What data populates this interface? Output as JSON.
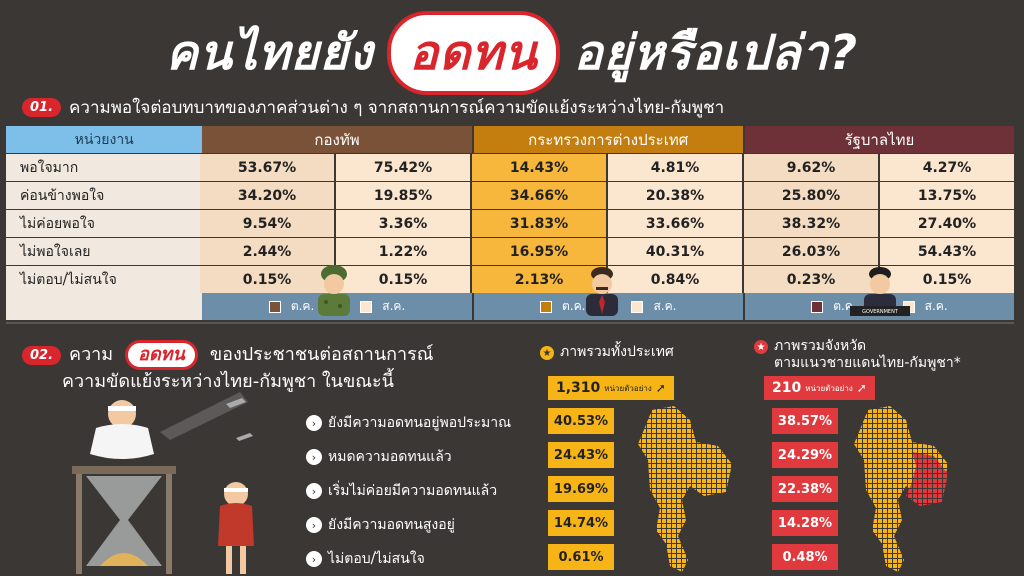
{
  "title": {
    "pre": "คนไทยยัง",
    "highlight": "อดทน",
    "post": "อยู่หรือเปล่า?"
  },
  "section1": {
    "num": "01.",
    "title": "ความพอใจต่อบทบาทของภาคส่วนต่าง ๆ จากสถานการณ์ความขัดแย้งระหว่างไทย-กัมพูชา",
    "header_label": "หน่วยงาน",
    "legend_a": "ต.ค.",
    "legend_b": "ส.ค.",
    "groups": [
      {
        "name": "กองทัพ",
        "head_color": "#7a5238",
        "col_a_color": "#f3dcc2",
        "col_b_color": "#fbe6d0",
        "legend_swatch": "#7a5238"
      },
      {
        "name": "กระทรวงการต่างประเทศ",
        "head_color": "#c47e10",
        "col_a_color": "#f6b73c",
        "col_b_color": "#fbe6d0",
        "legend_swatch": "#c47e10"
      },
      {
        "name": "รัฐบาลไทย",
        "head_color": "#6e3138",
        "col_a_color": "#f3dcc2",
        "col_b_color": "#fbe6d0",
        "legend_swatch": "#6e3138"
      }
    ],
    "figure_badge": "GOVERNMENT"
  },
  "chart_data": [
    {
      "type": "table",
      "title": "ความพอใจต่อบทบาทของภาคส่วนต่าง ๆ จากสถานการณ์ความขัดแย้งระหว่างไทย-กัมพูชา",
      "categories": [
        "พอใจมาก",
        "ค่อนข้างพอใจ",
        "ไม่ค่อยพอใจ",
        "ไม่พอใจเลย",
        "ไม่ตอบ/ไม่สนใจ"
      ],
      "series": [
        {
          "name": "กองทัพ ต.ค.",
          "values": [
            "53.67%",
            "34.20%",
            "9.54%",
            "2.44%",
            "0.15%"
          ]
        },
        {
          "name": "กองทัพ ส.ค.",
          "values": [
            "75.42%",
            "19.85%",
            "3.36%",
            "1.22%",
            "0.15%"
          ]
        },
        {
          "name": "กระทรวงการต่างประเทศ ต.ค.",
          "values": [
            "14.43%",
            "34.66%",
            "31.83%",
            "16.95%",
            "2.13%"
          ]
        },
        {
          "name": "กระทรวงการต่างประเทศ ส.ค.",
          "values": [
            "4.81%",
            "20.38%",
            "33.66%",
            "40.31%",
            "0.84%"
          ]
        },
        {
          "name": "รัฐบาลไทย ต.ค.",
          "values": [
            "9.62%",
            "25.80%",
            "38.32%",
            "26.03%",
            "0.23%"
          ]
        },
        {
          "name": "รัฐบาลไทย ส.ค.",
          "values": [
            "4.27%",
            "13.75%",
            "27.40%",
            "54.43%",
            "0.15%"
          ]
        }
      ]
    },
    {
      "type": "table",
      "title": "ความอดทนของประชาชนต่อสถานการณ์ความขัดแย้งระหว่างไทย-กัมพูชา ในขณะนี้",
      "categories": [
        "ยังมีความอดทนอยู่พอประมาณ",
        "หมดความอดทนแล้ว",
        "เริ่มไม่ค่อยมีความอดทนแล้ว",
        "ยังมีความอดทนสูงอยู่",
        "ไม่ตอบ/ไม่สนใจ"
      ],
      "series": [
        {
          "name": "ภาพรวมทั้งประเทศ",
          "values": [
            "40.53%",
            "24.43%",
            "19.69%",
            "14.74%",
            "0.61%"
          ]
        },
        {
          "name": "ภาพรวมจังหวัดตามแนวชายแดนไทย-กัมพูชา*",
          "values": [
            "38.57%",
            "24.29%",
            "22.38%",
            "14.28%",
            "0.48%"
          ]
        }
      ]
    }
  ],
  "section2": {
    "num": "02.",
    "title_pre": "ความ",
    "title_hl": "อดทน",
    "title_post": "ของประชาชนต่อสถานการณ์",
    "title_line2": "ความขัดแย้งระหว่างไทย-กัมพูชา ในขณะนี้",
    "national": {
      "label": "ภาพรวมทั้งประเทศ",
      "sample": "1,310",
      "unit": "หน่วยตัวอย่าง",
      "color": "#f6b417"
    },
    "border": {
      "label_1": "ภาพรวมจังหวัด",
      "label_2": "ตามแนวชายแดนไทย-กัมพูชา*",
      "sample": "210",
      "unit": "หน่วยตัวอย่าง",
      "color": "#e03a3e"
    }
  }
}
